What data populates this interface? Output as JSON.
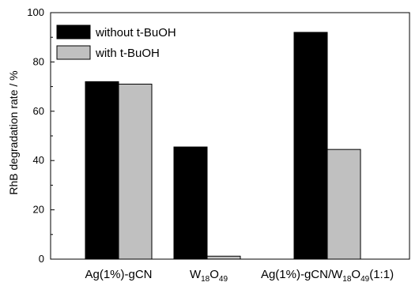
{
  "chart_data": {
    "type": "bar",
    "ylabel": "RhB degradation rate / %",
    "ylim": [
      0,
      100
    ],
    "yticks": [
      0,
      20,
      40,
      60,
      80,
      100
    ],
    "categories": [
      {
        "parts": [
          [
            "Ag(1%)-gCN",
            "normal"
          ]
        ]
      },
      {
        "parts": [
          [
            "W",
            "normal"
          ],
          [
            "18",
            "sub"
          ],
          [
            "O",
            "normal"
          ],
          [
            "49",
            "sub"
          ]
        ]
      },
      {
        "parts": [
          [
            "Ag(1%)-gCN/W",
            "normal"
          ],
          [
            "18",
            "sub"
          ],
          [
            "O",
            "normal"
          ],
          [
            "49",
            "sub"
          ],
          [
            "(1:1)",
            "normal"
          ]
        ]
      }
    ],
    "series": [
      {
        "name": "without t-BuOH",
        "color": "#000000",
        "values": [
          72,
          45.5,
          92
        ]
      },
      {
        "name": "with t-BuOH",
        "color": "#c0c0c0",
        "values": [
          71,
          1.2,
          44.5
        ]
      }
    ],
    "legend": "top-left",
    "grid": false
  }
}
